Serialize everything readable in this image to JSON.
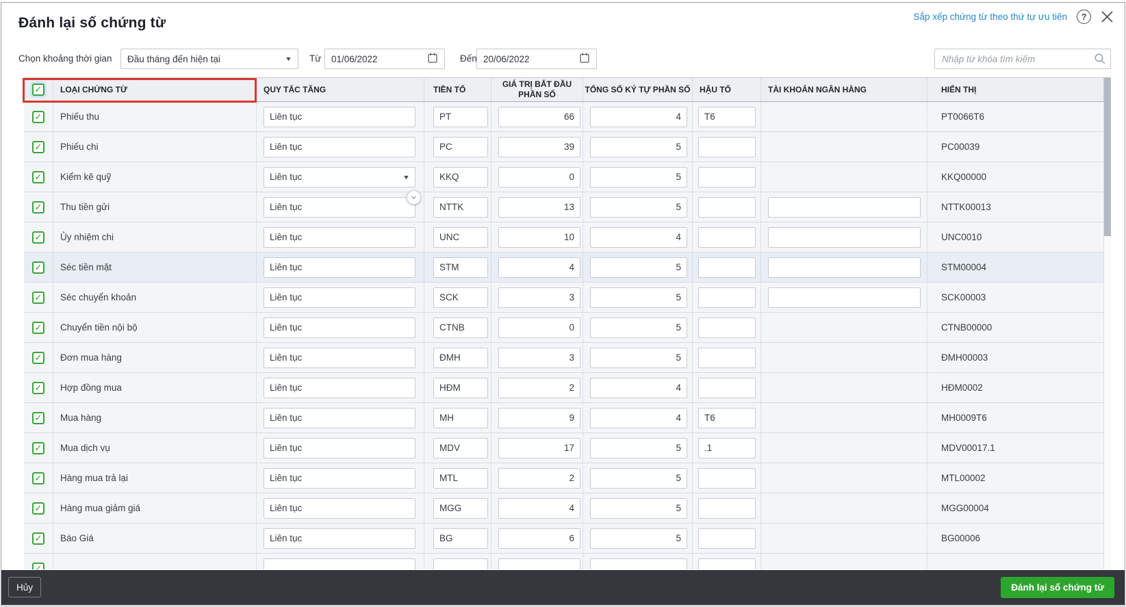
{
  "dialog": {
    "title": "Đánh lại số chứng từ",
    "priority_link": "Sắp xếp chứng từ theo thứ tự ưu tiên",
    "help_icon_glyph": "?",
    "icons": {
      "help": "question-circle-icon",
      "close": "x-icon",
      "calendar": "calendar-icon",
      "search": "magnifier-icon",
      "caret": "caret-down-icon",
      "badge": "chevron-down-icon"
    },
    "colors": {
      "accent_green": "#2ea62e",
      "checkbox_green": "#3ba33b",
      "link_blue": "#2089ca",
      "highlight_red": "#d5392f",
      "footer_dark": "#34383d",
      "header_bg": "#edeff3",
      "row_bg": "#f4f5f8",
      "selected_row_bg": "#e8edf6"
    }
  },
  "filters": {
    "period_label": "Chọn khoảng thời gian",
    "period_value": "Đầu tháng đến hiện tại",
    "from_label": "Từ",
    "from_value": "01/06/2022",
    "to_label": "Đến",
    "to_value": "20/06/2022",
    "search_placeholder": "Nhập từ khóa tìm kiếm"
  },
  "table": {
    "columns": {
      "type": "LOẠI CHỨNG TỪ",
      "rule": "QUY TẮC TĂNG",
      "prefix": "TIỀN TỐ",
      "start": "GIÁ TRỊ BẮT ĐẦU PHẦN SỐ",
      "digits": "TỔNG SỐ KÝ TỰ PHẦN SỐ",
      "suffix": "HẬU TỐ",
      "bank": "TÀI KHOẢN NGÂN HÀNG",
      "display": "HIỂN THỊ"
    },
    "rows": [
      {
        "checked": true,
        "type": "Phiếu thu",
        "rule": "Liên tục",
        "prefix": "PT",
        "start": "66",
        "digits": "4",
        "suffix": "T6",
        "bank": null,
        "display": "PT0066T6"
      },
      {
        "checked": true,
        "type": "Phiếu chi",
        "rule": "Liên tục",
        "prefix": "PC",
        "start": "39",
        "digits": "5",
        "suffix": "",
        "bank": null,
        "display": "PC00039"
      },
      {
        "checked": true,
        "type": "Kiểm kê quỹ",
        "rule": "Liên tục",
        "prefix": "KKQ",
        "start": "0",
        "digits": "5",
        "suffix": "",
        "bank": null,
        "display": "KKQ00000",
        "rule_dropdown": true
      },
      {
        "checked": true,
        "type": "Thu tiền gửi",
        "rule": "Liên tục",
        "prefix": "NTTK",
        "start": "13",
        "digits": "5",
        "suffix": "",
        "bank": "",
        "display": "NTTK00013"
      },
      {
        "checked": true,
        "type": "Ủy nhiệm chi",
        "rule": "Liên tục",
        "prefix": "UNC",
        "start": "10",
        "digits": "4",
        "suffix": "",
        "bank": "",
        "display": "UNC0010"
      },
      {
        "checked": true,
        "type": "Séc tiền mặt",
        "rule": "Liên tục",
        "prefix": "STM",
        "start": "4",
        "digits": "5",
        "suffix": "",
        "bank": "",
        "display": "STM00004",
        "selected": true
      },
      {
        "checked": true,
        "type": "Séc chuyển khoản",
        "rule": "Liên tục",
        "prefix": "SCK",
        "start": "3",
        "digits": "5",
        "suffix": "",
        "bank": "",
        "display": "SCK00003"
      },
      {
        "checked": true,
        "type": "Chuyển tiền nội bộ",
        "rule": "Liên tục",
        "prefix": "CTNB",
        "start": "0",
        "digits": "5",
        "suffix": "",
        "bank": null,
        "display": "CTNB00000"
      },
      {
        "checked": true,
        "type": "Đơn mua hàng",
        "rule": "Liên tục",
        "prefix": "ĐMH",
        "start": "3",
        "digits": "5",
        "suffix": "",
        "bank": null,
        "display": "ĐMH00003"
      },
      {
        "checked": true,
        "type": "Hợp đồng mua",
        "rule": "Liên tục",
        "prefix": "HĐM",
        "start": "2",
        "digits": "4",
        "suffix": "",
        "bank": null,
        "display": "HĐM0002"
      },
      {
        "checked": true,
        "type": "Mua hàng",
        "rule": "Liên tục",
        "prefix": "MH",
        "start": "9",
        "digits": "4",
        "suffix": "T6",
        "bank": null,
        "display": "MH0009T6"
      },
      {
        "checked": true,
        "type": "Mua dịch vụ",
        "rule": "Liên tục",
        "prefix": "MDV",
        "start": "17",
        "digits": "5",
        "suffix": ".1",
        "bank": null,
        "display": "MDV00017.1"
      },
      {
        "checked": true,
        "type": "Hàng mua trả lại",
        "rule": "Liên tục",
        "prefix": "MTL",
        "start": "2",
        "digits": "5",
        "suffix": "",
        "bank": null,
        "display": "MTL00002"
      },
      {
        "checked": true,
        "type": "Hàng mua giảm giá",
        "rule": "Liên tục",
        "prefix": "MGG",
        "start": "4",
        "digits": "5",
        "suffix": "",
        "bank": null,
        "display": "MGG00004"
      },
      {
        "checked": true,
        "type": "Báo Giá",
        "rule": "Liên tục",
        "prefix": "BG",
        "start": "6",
        "digits": "5",
        "suffix": "",
        "bank": null,
        "display": "BG00006"
      },
      {
        "checked": true,
        "type": "",
        "rule": "",
        "prefix": "",
        "start": "",
        "digits": "",
        "suffix": "",
        "bank": null,
        "display": "",
        "partial": true
      }
    ]
  },
  "footer": {
    "cancel_label": "Hủy",
    "submit_label": "Đánh lại số chứng từ"
  }
}
